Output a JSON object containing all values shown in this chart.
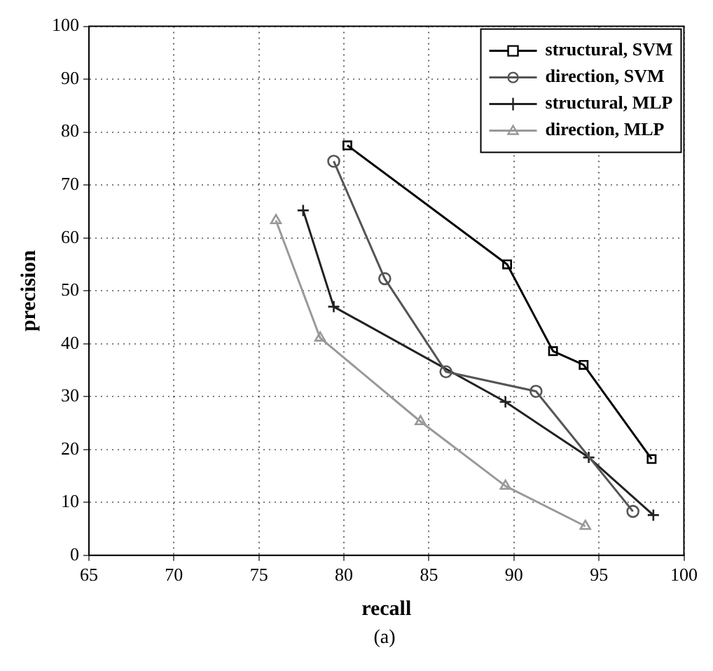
{
  "chart_data": {
    "type": "line",
    "xlabel": "recall",
    "ylabel": "precision",
    "annotations": [
      "(a)"
    ],
    "xlim": [
      65,
      100
    ],
    "xticks": [
      65,
      70,
      75,
      80,
      85,
      90,
      95,
      100
    ],
    "ylim": [
      0,
      100
    ],
    "yticks": [
      0,
      10,
      20,
      30,
      40,
      50,
      60,
      70,
      80,
      90,
      100
    ],
    "grid": true,
    "legend": "top right",
    "line_style": "solid",
    "series": [
      {
        "name": "structural, SVM",
        "color": "#000000",
        "marker": "square",
        "x": [
          80.2,
          89.6,
          92.3,
          94.1,
          98.1
        ],
        "values": [
          77.5,
          55,
          38.6,
          36,
          18.2
        ]
      },
      {
        "name": "direction, SVM",
        "color": "#555555",
        "marker": "circle",
        "x": [
          79.4,
          82.4,
          86,
          91.3,
          97
        ],
        "values": [
          74.5,
          52.3,
          34.7,
          31,
          8.3
        ]
      },
      {
        "name": "structural, MLP",
        "color": "#222222",
        "marker": "cross",
        "x": [
          77.6,
          79.4,
          89.5,
          94.4,
          98.2
        ],
        "values": [
          65.2,
          47,
          29,
          18.5,
          7.6
        ]
      },
      {
        "name": "direction, MLP",
        "color": "#999999",
        "marker": "triangle",
        "x": [
          76,
          78.6,
          84.5,
          89.5,
          94.2
        ],
        "values": [
          63.3,
          41.1,
          25.3,
          13.1,
          5.5
        ]
      }
    ]
  }
}
